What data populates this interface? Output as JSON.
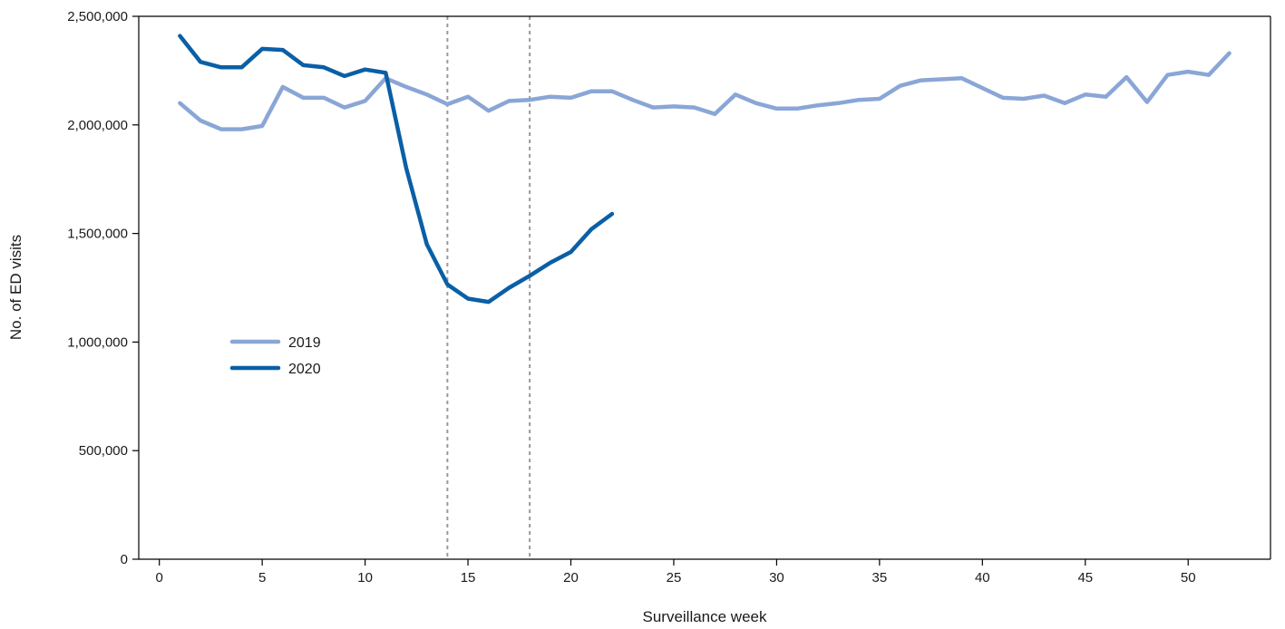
{
  "chart_data": {
    "type": "line",
    "title": "",
    "xlabel": "Surveillance week",
    "ylabel": "No. of ED visits",
    "xlim": [
      -1,
      54
    ],
    "ylim": [
      0,
      2500000
    ],
    "x_ticks": [
      0,
      5,
      10,
      15,
      20,
      25,
      30,
      35,
      40,
      45,
      50
    ],
    "y_ticks": [
      0,
      500000,
      1000000,
      1500000,
      2000000,
      2500000
    ],
    "y_tick_labels": [
      "0",
      "500,000",
      "1,000,000",
      "1,500,000",
      "2,000,000",
      "2,500,000"
    ],
    "grid": false,
    "legend_position": "left-center",
    "reference_lines_x": [
      14,
      18
    ],
    "series": [
      {
        "name": "2019",
        "color": "#8aa6d6",
        "x": [
          1,
          2,
          3,
          4,
          5,
          6,
          7,
          8,
          9,
          10,
          11,
          12,
          13,
          14,
          15,
          16,
          17,
          18,
          19,
          20,
          21,
          22,
          23,
          24,
          25,
          26,
          27,
          28,
          29,
          30,
          31,
          32,
          33,
          34,
          35,
          36,
          37,
          38,
          39,
          40,
          41,
          42,
          43,
          44,
          45,
          46,
          47,
          48,
          49,
          50,
          51,
          52
        ],
        "values": [
          2100000,
          2020000,
          1980000,
          1980000,
          1995000,
          2175000,
          2125000,
          2125000,
          2080000,
          2110000,
          2215000,
          2175000,
          2140000,
          2095000,
          2130000,
          2065000,
          2110000,
          2115000,
          2130000,
          2125000,
          2155000,
          2155000,
          2115000,
          2080000,
          2085000,
          2080000,
          2050000,
          2140000,
          2100000,
          2075000,
          2075000,
          2090000,
          2100000,
          2115000,
          2120000,
          2180000,
          2205000,
          2210000,
          2215000,
          2170000,
          2125000,
          2120000,
          2135000,
          2100000,
          2140000,
          2130000,
          2220000,
          2105000,
          2230000,
          2245000,
          2230000,
          2330000
        ]
      },
      {
        "name": "2020",
        "color": "#0a5fa6",
        "x": [
          1,
          2,
          3,
          4,
          5,
          6,
          7,
          8,
          9,
          10,
          11,
          12,
          13,
          14,
          15,
          16,
          17,
          18,
          19,
          20,
          21,
          22
        ],
        "values": [
          2410000,
          2290000,
          2265000,
          2265000,
          2350000,
          2345000,
          2275000,
          2265000,
          2225000,
          2255000,
          2240000,
          1800000,
          1450000,
          1265000,
          1200000,
          1185000,
          1250000,
          1305000,
          1365000,
          1415000,
          1520000,
          1590000
        ]
      }
    ]
  }
}
